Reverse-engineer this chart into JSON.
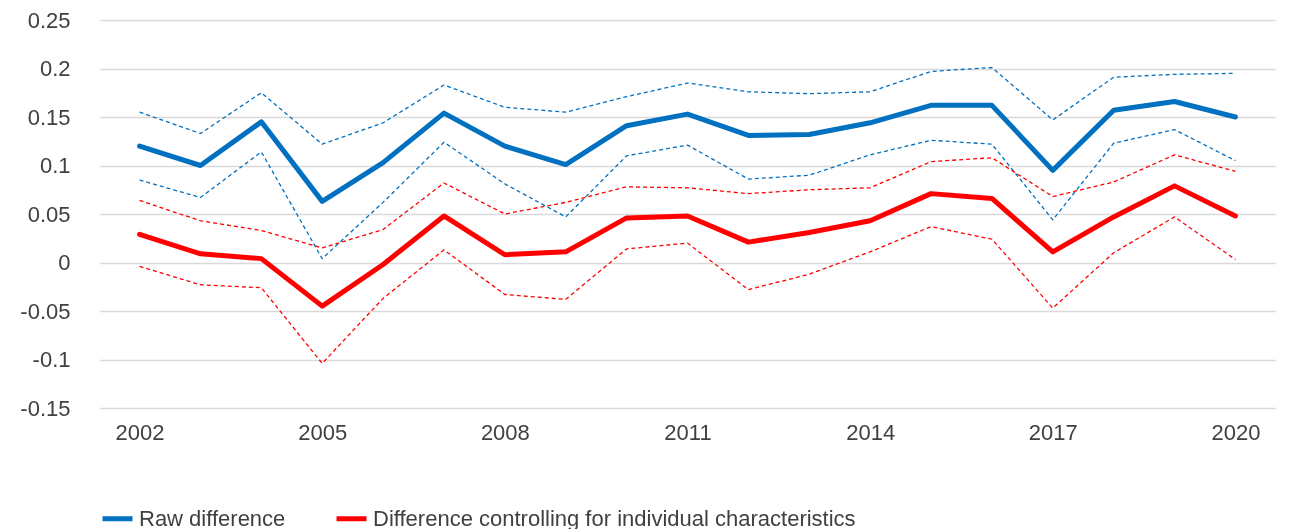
{
  "chart_data": {
    "type": "line",
    "categories": [
      "2002",
      null,
      null,
      "2005",
      null,
      null,
      "2008",
      null,
      null,
      "2011",
      null,
      null,
      "2014",
      null,
      null,
      "2017",
      null,
      null,
      "2020"
    ],
    "series": [
      {
        "name": "Raw difference",
        "color": "#0070c0",
        "values": [
          0.12,
          0.1,
          0.145,
          0.063,
          0.103,
          0.154,
          0.12,
          0.101,
          0.141,
          0.153,
          0.131,
          0.132,
          0.144,
          0.162,
          0.162,
          0.095,
          0.157,
          0.166,
          0.15
        ]
      },
      {
        "name": "Difference controlling for individual characteristics",
        "color": "#ff0000",
        "values": [
          0.029,
          0.009,
          0.004,
          -0.045,
          -0.002,
          0.048,
          0.008,
          0.011,
          0.046,
          0.048,
          0.021,
          0.031,
          0.043,
          0.071,
          0.066,
          0.011,
          0.047,
          0.079,
          0.048
        ]
      },
      {
        "color": "#0070c0",
        "line_style": "dashed",
        "values": [
          0.155,
          0.133,
          0.175,
          0.122,
          0.144,
          0.183,
          0.16,
          0.155,
          0.171,
          0.185,
          0.176,
          0.174,
          0.176,
          0.197,
          0.201,
          0.147,
          0.191,
          0.194,
          0.195
        ]
      },
      {
        "color": "#0070c0",
        "line_style": "dashed",
        "values": [
          0.085,
          0.067,
          0.114,
          0.004,
          0.062,
          0.124,
          0.081,
          0.047,
          0.11,
          0.121,
          0.086,
          0.09,
          0.111,
          0.126,
          0.122,
          0.044,
          0.123,
          0.137,
          0.105
        ]
      },
      {
        "color": "#ff0000",
        "line_style": "dashed",
        "values": [
          0.064,
          0.043,
          0.033,
          0.015,
          0.034,
          0.082,
          0.05,
          0.062,
          0.078,
          0.077,
          0.071,
          0.075,
          0.077,
          0.104,
          0.108,
          0.068,
          0.083,
          0.111,
          0.094
        ]
      },
      {
        "color": "#ff0000",
        "line_style": "dashed",
        "values": [
          -0.004,
          -0.023,
          -0.026,
          -0.104,
          -0.037,
          0.013,
          -0.033,
          -0.038,
          0.014,
          0.02,
          -0.028,
          -0.012,
          0.011,
          0.037,
          0.024,
          -0.047,
          0.01,
          0.047,
          0.003
        ]
      }
    ],
    "ylim": [
      -0.15,
      0.25
    ],
    "yticks": [
      -0.15,
      -0.1,
      -0.05,
      0,
      0.05,
      0.1,
      0.15,
      0.2,
      0.25
    ],
    "grid": "y",
    "legend": "bottom",
    "line_style": "solid"
  }
}
